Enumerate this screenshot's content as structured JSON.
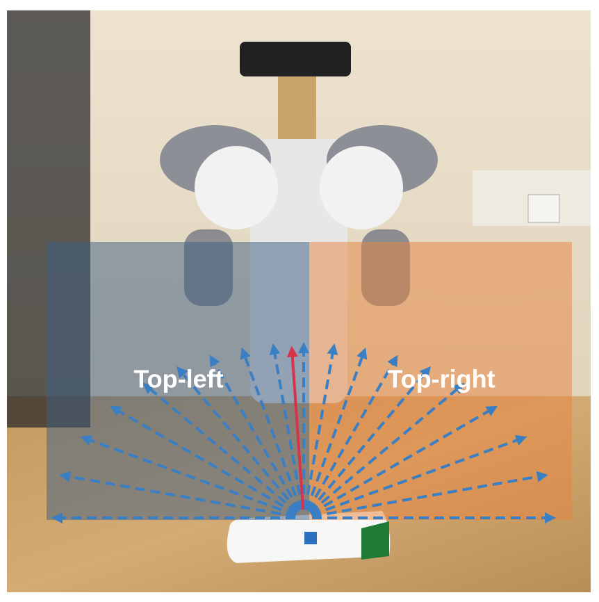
{
  "labels": [
    "Top-left",
    "Top-right"
  ]
}
